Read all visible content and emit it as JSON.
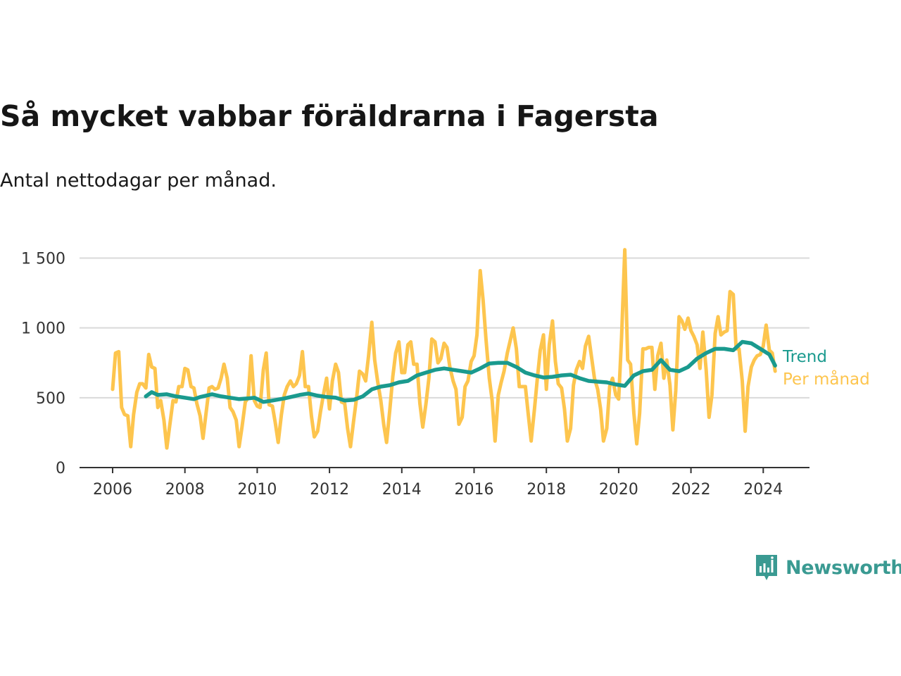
{
  "chart_data": {
    "type": "line",
    "title": "Så mycket vabbar föräldrarna i Fagersta",
    "subtitle": "Antal nettodagar per månad.",
    "xlim": [
      2006,
      2024.5
    ],
    "ylim": [
      0,
      1600
    ],
    "x_ticks": [
      2006,
      2008,
      2010,
      2012,
      2014,
      2016,
      2018,
      2020,
      2022,
      2024
    ],
    "x_tick_labels": [
      "2006",
      "2008",
      "2010",
      "2012",
      "2014",
      "2016",
      "2018",
      "2020",
      "2022",
      "2024"
    ],
    "y_ticks": [
      0,
      500,
      1000,
      1500
    ],
    "y_tick_labels": [
      "0",
      "500",
      "1 000",
      "1 500"
    ],
    "grid": "horizontal",
    "colors": {
      "per_month": "#fdc54e",
      "trend": "#1a9a8e",
      "grid": "#d9d9d9",
      "axis": "#333333"
    },
    "series": [
      {
        "name": "Per månad",
        "x": [
          2006.0,
          2006.08,
          2006.17,
          2006.25,
          2006.33,
          2006.42,
          2006.5,
          2006.58,
          2006.67,
          2006.75,
          2006.83,
          2006.92,
          2007.0,
          2007.08,
          2007.17,
          2007.25,
          2007.33,
          2007.42,
          2007.5,
          2007.58,
          2007.67,
          2007.75,
          2007.83,
          2007.92,
          2008.0,
          2008.08,
          2008.17,
          2008.25,
          2008.33,
          2008.42,
          2008.5,
          2008.58,
          2008.67,
          2008.75,
          2008.83,
          2008.92,
          2009.0,
          2009.08,
          2009.17,
          2009.25,
          2009.33,
          2009.42,
          2009.5,
          2009.58,
          2009.67,
          2009.75,
          2009.83,
          2009.92,
          2010.0,
          2010.08,
          2010.17,
          2010.25,
          2010.33,
          2010.42,
          2010.5,
          2010.58,
          2010.67,
          2010.75,
          2010.83,
          2010.92,
          2011.0,
          2011.08,
          2011.17,
          2011.25,
          2011.33,
          2011.42,
          2011.5,
          2011.58,
          2011.67,
          2011.75,
          2011.83,
          2011.92,
          2012.0,
          2012.08,
          2012.17,
          2012.25,
          2012.33,
          2012.42,
          2012.5,
          2012.58,
          2012.67,
          2012.75,
          2012.83,
          2012.92,
          2013.0,
          2013.08,
          2013.17,
          2013.25,
          2013.33,
          2013.42,
          2013.5,
          2013.58,
          2013.67,
          2013.75,
          2013.83,
          2013.92,
          2014.0,
          2014.08,
          2014.17,
          2014.25,
          2014.33,
          2014.42,
          2014.5,
          2014.58,
          2014.67,
          2014.75,
          2014.83,
          2014.92,
          2015.0,
          2015.08,
          2015.17,
          2015.25,
          2015.33,
          2015.42,
          2015.5,
          2015.58,
          2015.67,
          2015.75,
          2015.83,
          2015.92,
          2016.0,
          2016.08,
          2016.17,
          2016.25,
          2016.33,
          2016.42,
          2016.5,
          2016.58,
          2016.67,
          2016.75,
          2016.83,
          2016.92,
          2017.0,
          2017.08,
          2017.17,
          2017.25,
          2017.33,
          2017.42,
          2017.5,
          2017.58,
          2017.67,
          2017.75,
          2017.83,
          2017.92,
          2018.0,
          2018.08,
          2018.17,
          2018.25,
          2018.33,
          2018.42,
          2018.5,
          2018.58,
          2018.67,
          2018.75,
          2018.83,
          2018.92,
          2019.0,
          2019.08,
          2019.17,
          2019.25,
          2019.33,
          2019.42,
          2019.5,
          2019.58,
          2019.67,
          2019.75,
          2019.83,
          2019.92,
          2020.0,
          2020.08,
          2020.17,
          2020.25,
          2020.33,
          2020.42,
          2020.5,
          2020.58,
          2020.67,
          2020.75,
          2020.83,
          2020.92,
          2021.0,
          2021.08,
          2021.17,
          2021.25,
          2021.33,
          2021.42,
          2021.5,
          2021.58,
          2021.67,
          2021.75,
          2021.83,
          2021.92,
          2022.0,
          2022.08,
          2022.17,
          2022.25,
          2022.33,
          2022.42,
          2022.5,
          2022.58,
          2022.67,
          2022.75,
          2022.83,
          2022.92,
          2023.0,
          2023.08,
          2023.17,
          2023.25,
          2023.33,
          2023.42,
          2023.5,
          2023.58,
          2023.67,
          2023.75,
          2023.83,
          2023.92,
          2024.0,
          2024.08,
          2024.17,
          2024.25,
          2024.33
        ],
        "values": [
          560,
          820,
          830,
          430,
          380,
          370,
          150,
          380,
          540,
          600,
          600,
          570,
          810,
          720,
          710,
          430,
          480,
          340,
          140,
          300,
          480,
          470,
          580,
          580,
          710,
          700,
          580,
          570,
          460,
          370,
          210,
          380,
          570,
          580,
          560,
          570,
          640,
          740,
          640,
          430,
          400,
          340,
          150,
          290,
          470,
          500,
          800,
          480,
          440,
          430,
          700,
          820,
          450,
          440,
          320,
          180,
          380,
          520,
          580,
          620,
          580,
          600,
          660,
          830,
          580,
          580,
          370,
          220,
          260,
          400,
          520,
          640,
          420,
          620,
          740,
          680,
          470,
          460,
          280,
          150,
          340,
          500,
          690,
          670,
          620,
          800,
          1040,
          770,
          620,
          480,
          310,
          180,
          420,
          650,
          820,
          900,
          680,
          680,
          880,
          900,
          740,
          740,
          460,
          290,
          460,
          640,
          920,
          900,
          750,
          780,
          890,
          860,
          720,
          620,
          560,
          310,
          360,
          580,
          620,
          760,
          800,
          950,
          1410,
          1200,
          920,
          640,
          480,
          190,
          520,
          610,
          690,
          820,
          910,
          1000,
          850,
          580,
          580,
          580,
          380,
          190,
          420,
          640,
          840,
          950,
          560,
          880,
          1050,
          760,
          600,
          570,
          420,
          190,
          280,
          590,
          700,
          760,
          710,
          870,
          940,
          790,
          640,
          560,
          420,
          190,
          280,
          580,
          640,
          520,
          490,
          930,
          1560,
          770,
          740,
          390,
          170,
          390,
          850,
          850,
          860,
          860,
          560,
          800,
          890,
          640,
          770,
          590,
          270,
          550,
          1080,
          1050,
          990,
          1070,
          980,
          940,
          880,
          710,
          970,
          700,
          360,
          520,
          960,
          1080,
          950,
          970,
          980,
          1260,
          1240,
          850,
          850,
          620,
          260,
          580,
          720,
          770,
          800,
          810,
          870,
          1020,
          840,
          820,
          690
        ]
      },
      {
        "name": "Trend",
        "x": [
          2006.92,
          2007.08,
          2007.25,
          2007.5,
          2007.75,
          2008.0,
          2008.25,
          2008.42,
          2008.75,
          2009.0,
          2009.25,
          2009.5,
          2009.75,
          2009.92,
          2010.17,
          2010.42,
          2010.75,
          2011.0,
          2011.17,
          2011.42,
          2011.67,
          2011.92,
          2012.17,
          2012.42,
          2012.67,
          2012.92,
          2013.17,
          2013.42,
          2013.67,
          2013.92,
          2014.17,
          2014.42,
          2014.67,
          2014.92,
          2015.17,
          2015.42,
          2015.67,
          2015.92,
          2016.17,
          2016.42,
          2016.67,
          2016.92,
          2017.17,
          2017.42,
          2017.67,
          2017.92,
          2018.17,
          2018.42,
          2018.67,
          2018.92,
          2019.17,
          2019.42,
          2019.67,
          2019.92,
          2020.17,
          2020.42,
          2020.67,
          2020.92,
          2021.17,
          2021.42,
          2021.67,
          2021.92,
          2022.17,
          2022.42,
          2022.67,
          2022.92,
          2023.17,
          2023.42,
          2023.67,
          2023.92,
          2024.17,
          2024.33
        ],
        "values": [
          510,
          540,
          520,
          525,
          510,
          500,
          490,
          505,
          525,
          510,
          500,
          490,
          495,
          500,
          470,
          480,
          495,
          510,
          520,
          530,
          515,
          505,
          500,
          480,
          485,
          510,
          560,
          580,
          590,
          610,
          620,
          660,
          680,
          700,
          710,
          700,
          690,
          680,
          710,
          745,
          750,
          750,
          720,
          680,
          660,
          645,
          650,
          660,
          665,
          640,
          620,
          615,
          610,
          595,
          585,
          660,
          690,
          700,
          770,
          700,
          690,
          720,
          780,
          820,
          850,
          850,
          840,
          900,
          890,
          850,
          810,
          730
        ]
      }
    ]
  },
  "labels": {
    "title": "Så mycket vabbar föräldrarna i Fagersta",
    "subtitle": "Antal nettodagar per månad.",
    "trend_label": "Trend",
    "per_month_label": "Per månad"
  },
  "logo": {
    "text": "Newsworthy",
    "icon": "newsworthy-logo-icon",
    "color": "#3a9a92"
  }
}
